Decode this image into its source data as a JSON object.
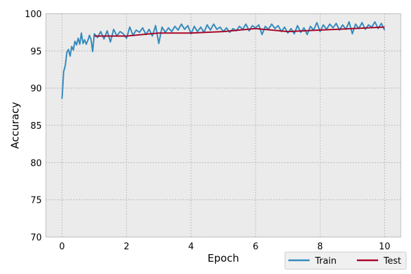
{
  "chart_data": {
    "type": "line",
    "title": "",
    "xlabel": "Epoch",
    "ylabel": "Accuracy",
    "xlim": [
      -0.5,
      10.5
    ],
    "ylim": [
      70,
      100
    ],
    "x_ticks": [
      0,
      2,
      4,
      6,
      8,
      10
    ],
    "y_ticks": [
      70,
      75,
      80,
      85,
      90,
      95,
      100
    ],
    "grid": true,
    "legend_position": "bottom-right, below plot",
    "colors": {
      "background": "#ebebeb",
      "grid": "#b0b0b0",
      "train": "#348abd",
      "test": "#a60628"
    },
    "series": [
      {
        "name": "Train",
        "x": [
          0.0,
          0.05,
          0.1,
          0.15,
          0.2,
          0.25,
          0.3,
          0.35,
          0.4,
          0.45,
          0.5,
          0.55,
          0.6,
          0.65,
          0.7,
          0.75,
          0.8,
          0.85,
          0.9,
          0.95,
          1.0,
          1.1,
          1.2,
          1.3,
          1.4,
          1.5,
          1.6,
          1.7,
          1.8,
          1.9,
          2.0,
          2.1,
          2.2,
          2.3,
          2.4,
          2.5,
          2.6,
          2.7,
          2.8,
          2.9,
          3.0,
          3.1,
          3.2,
          3.3,
          3.4,
          3.5,
          3.6,
          3.7,
          3.8,
          3.9,
          4.0,
          4.1,
          4.2,
          4.3,
          4.4,
          4.5,
          4.6,
          4.7,
          4.8,
          4.9,
          5.0,
          5.1,
          5.2,
          5.3,
          5.4,
          5.5,
          5.6,
          5.7,
          5.8,
          5.9,
          6.0,
          6.1,
          6.2,
          6.3,
          6.4,
          6.5,
          6.6,
          6.7,
          6.8,
          6.9,
          7.0,
          7.1,
          7.2,
          7.3,
          7.4,
          7.5,
          7.6,
          7.7,
          7.8,
          7.9,
          8.0,
          8.1,
          8.2,
          8.3,
          8.4,
          8.5,
          8.6,
          8.7,
          8.8,
          8.9,
          9.0,
          9.1,
          9.2,
          9.3,
          9.4,
          9.5,
          9.6,
          9.7,
          9.8,
          9.9,
          10.0
        ],
        "values": [
          88.6,
          92.2,
          93.0,
          94.8,
          95.2,
          94.3,
          95.6,
          95.1,
          96.3,
          95.8,
          96.7,
          95.9,
          97.4,
          96.0,
          96.5,
          95.9,
          96.4,
          97.1,
          96.5,
          94.9,
          97.3,
          96.8,
          97.6,
          96.6,
          97.7,
          96.2,
          97.9,
          97.0,
          97.6,
          97.3,
          96.7,
          98.2,
          97.1,
          97.8,
          97.5,
          98.1,
          97.2,
          97.9,
          97.0,
          98.4,
          96.0,
          98.2,
          97.5,
          98.1,
          97.6,
          98.3,
          97.8,
          98.6,
          97.9,
          98.4,
          97.3,
          98.3,
          97.6,
          98.2,
          97.5,
          98.5,
          97.8,
          98.6,
          97.9,
          98.2,
          97.6,
          98.1,
          97.5,
          98.0,
          97.7,
          98.3,
          97.9,
          98.6,
          97.7,
          98.4,
          98.1,
          98.5,
          97.2,
          98.3,
          97.9,
          98.6,
          98.0,
          98.4,
          97.6,
          98.2,
          97.4,
          98.0,
          97.3,
          98.4,
          97.5,
          98.1,
          97.2,
          98.3,
          97.8,
          98.8,
          97.6,
          98.5,
          97.9,
          98.6,
          98.1,
          98.7,
          97.8,
          98.5,
          97.9,
          98.9,
          97.3,
          98.6,
          98.0,
          98.8,
          97.9,
          98.5,
          98.2,
          98.9,
          98.0,
          98.7,
          97.8
        ],
        "color": "#348abd"
      },
      {
        "name": "Test",
        "x": [
          1,
          1.5,
          2,
          2.5,
          3,
          3.5,
          4,
          4.5,
          5,
          5.5,
          6,
          6.5,
          7,
          7.5,
          8,
          8.5,
          9,
          9.5,
          10
        ],
        "values": [
          97.0,
          97.0,
          97.0,
          97.2,
          97.4,
          97.4,
          97.4,
          97.5,
          97.6,
          97.8,
          98.0,
          97.8,
          97.6,
          97.7,
          97.8,
          97.9,
          98.0,
          98.1,
          98.2
        ],
        "color": "#a60628"
      }
    ]
  }
}
